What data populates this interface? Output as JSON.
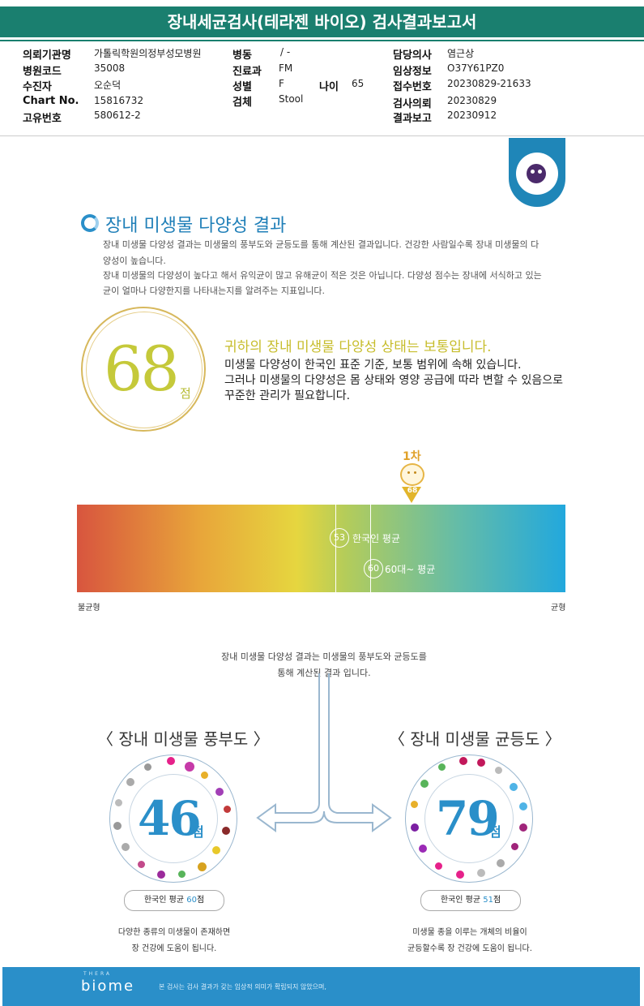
{
  "report_title": "장내세균검사(테라젠 바이오) 검사결과보고서",
  "header": {
    "col1": [
      {
        "label": "의뢰기관명",
        "value": "가톨릭학원의정부성모병원"
      },
      {
        "label": "병원코드",
        "value": "35008"
      },
      {
        "label": "수진자",
        "value": "오순덕"
      },
      {
        "label": "Chart No.",
        "value": "15816732"
      },
      {
        "label": "고유번호",
        "value": "580612-2"
      }
    ],
    "col2": [
      {
        "label": "병동",
        "value": "/ -"
      },
      {
        "label": "진료과",
        "value": "FM"
      },
      {
        "label": "성별",
        "value": "F"
      },
      {
        "label": "검체",
        "value": "Stool"
      }
    ],
    "age": {
      "label": "나이",
      "value": "65"
    },
    "col3": [
      {
        "label": "담당의사",
        "value": "염근상"
      },
      {
        "label": "임상정보",
        "value": "O37Y61PZ0"
      },
      {
        "label": "접수번호",
        "value": "20230829-21633"
      },
      {
        "label": "검사의뢰",
        "value": "20230829"
      },
      {
        "label": "결과보고",
        "value": "20230912"
      }
    ]
  },
  "diversity": {
    "title": "장내 미생물 다양성 결과",
    "desc": [
      "장내 미생물 다양성 결과는 미생물의 풍부도와 균등도를 통해 계산된 결과입니다. 건강한 사람일수록 장내 미생물의 다",
      "양성이 높습니다.",
      "장내 미생물의 다양성이 높다고 해서 유익균이 많고 유해균이 적은 것은 아닙니다. 다양성 점수는 장내에 서식하고 있는",
      "균이 얼마나 다양한지를 나타내는지를 알려주는 지표입니다."
    ],
    "score": "68",
    "score_unit": "점",
    "status_heading": "귀하의 장내 미생물 다양성 상태는 보통입니다.",
    "status_lines": [
      "미생물 다양성이 한국인 표준 기준, 보통 범위에 속해 있습니다.",
      "그러나 미생물의 다양성은 몸 상태와 영양 공급에 따라 변할 수 있음으로",
      "꾸준한 관리가 필요합니다."
    ]
  },
  "scale": {
    "marker_label": "1차",
    "marker_value": "68",
    "korean_avg": {
      "value": "53",
      "label": "한국인 평균"
    },
    "age_avg": {
      "value": "60",
      "label": "60대~ 평균"
    },
    "left_label": "불균형",
    "right_label": "균형"
  },
  "explain": [
    "장내 미생물 다양성 결과는 미생물의 풍부도와 균등도를",
    "통해 계산된 결과 입니다."
  ],
  "richness": {
    "title": "〈 장내 미생물 풍부도 〉",
    "score": "46",
    "unit": "점",
    "avg_prefix": "한국인 평균 ",
    "avg_value": "60",
    "avg_suffix": "점",
    "desc": [
      "다양한 종류의 미생물이 존재하면",
      "장 건강에 도움이 됩니다."
    ]
  },
  "evenness": {
    "title": "〈 장내 미생물 균등도 〉",
    "score": "79",
    "unit": "점",
    "avg_prefix": "한국인 평균 ",
    "avg_value": "51",
    "avg_suffix": "점",
    "desc": [
      "미생물 종을 이루는 개체의 비율이",
      "균등할수록 장 건강에 도움이 됩니다."
    ]
  },
  "footer": {
    "logo_small": "THERA",
    "logo": "biome",
    "note": "본 검사는 검사 결과가 갖는 임상적 의미가 확립되지 않았으며,"
  },
  "colors": {
    "teal": "#1a7f6f",
    "blue": "#2a8fc9",
    "gold": "#c5c93a"
  }
}
